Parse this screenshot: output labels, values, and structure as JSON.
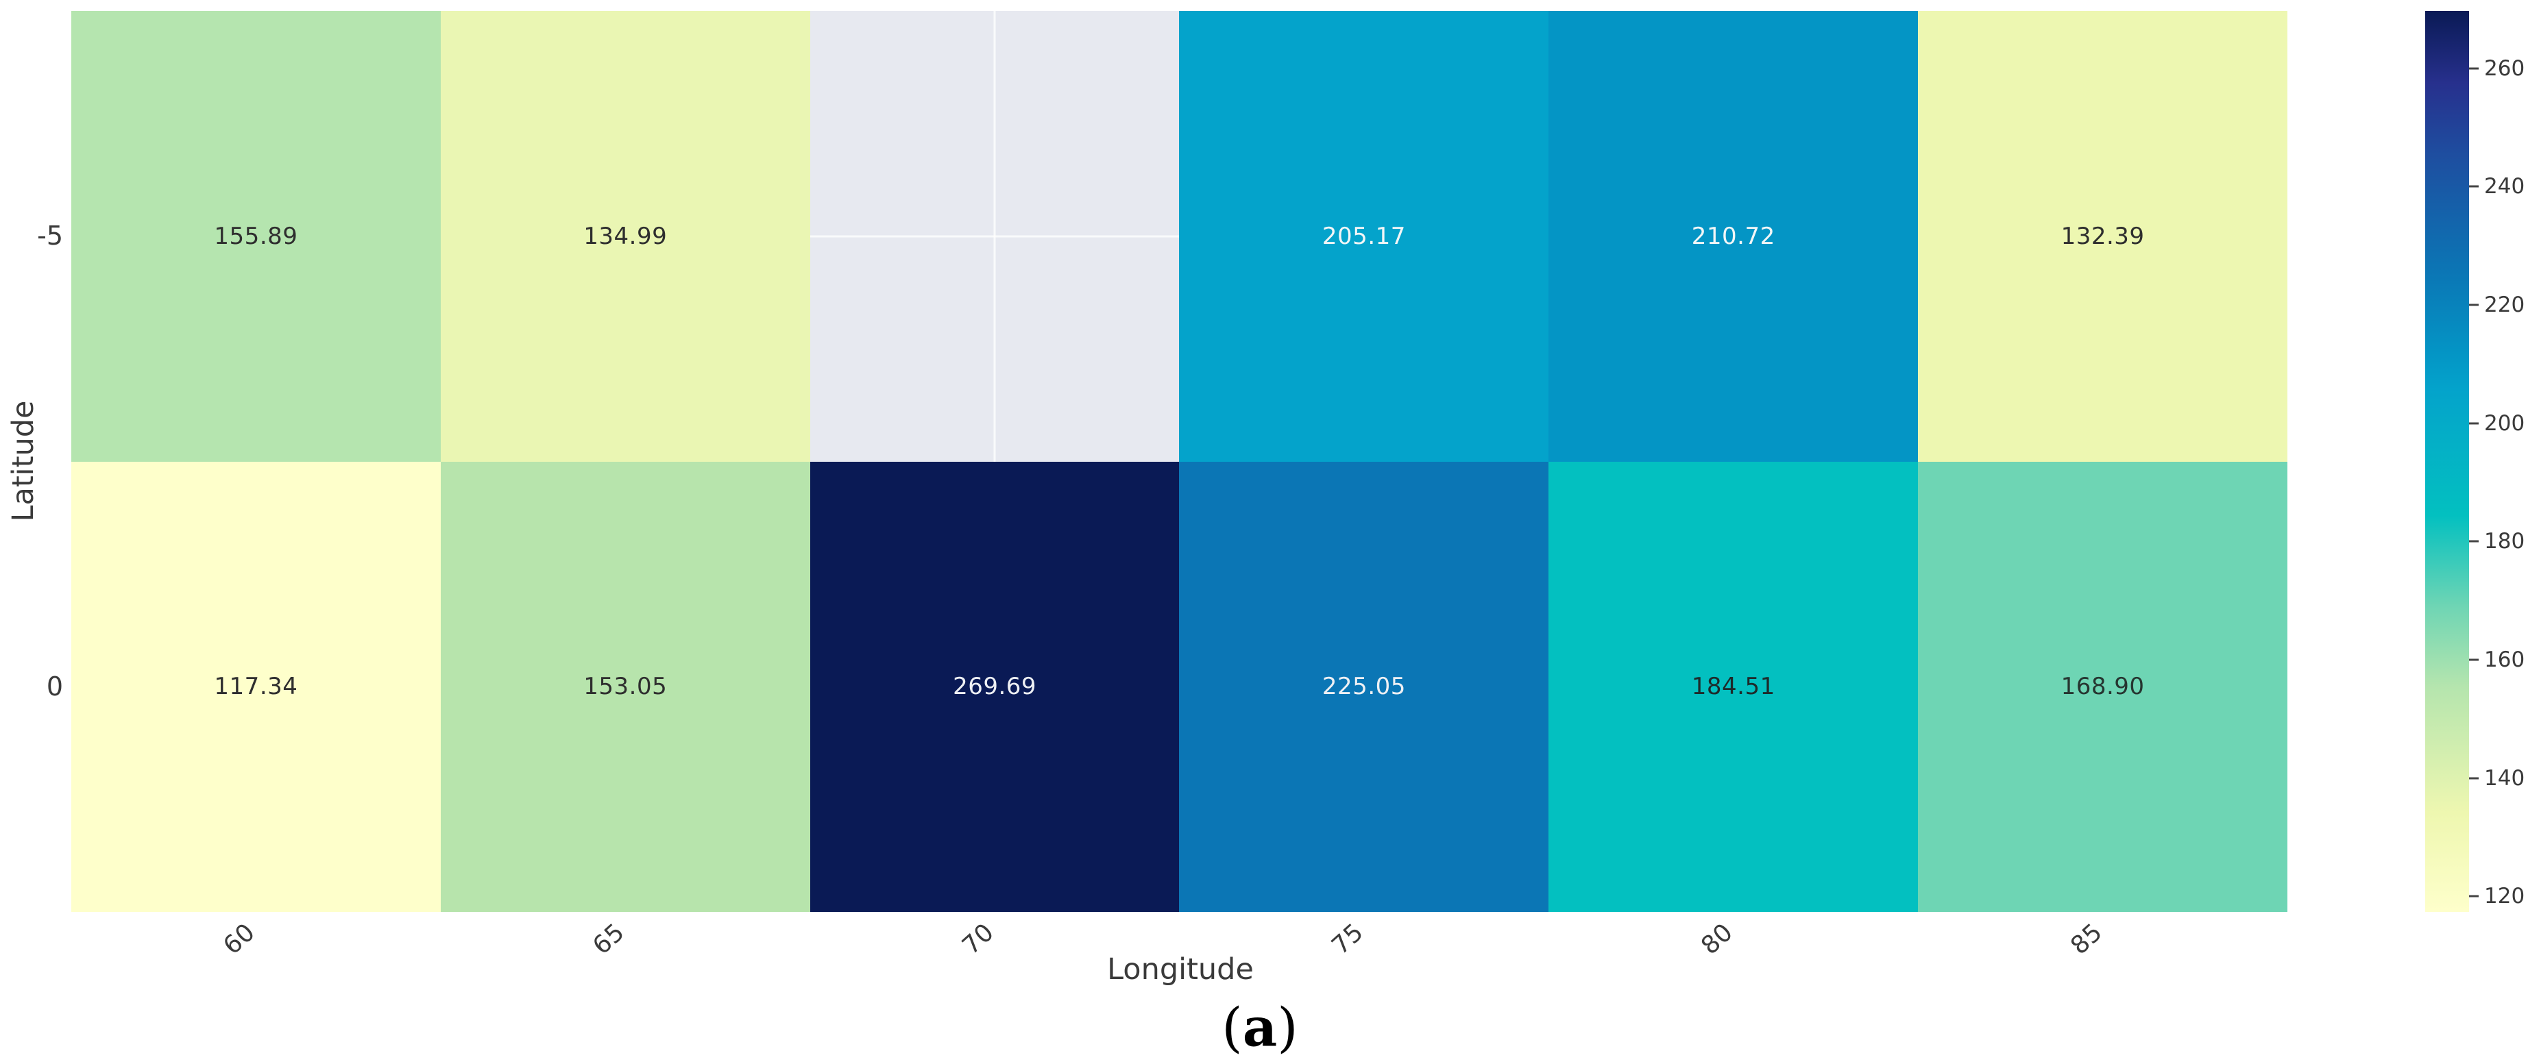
{
  "figure": {
    "caption": {
      "open": "(",
      "letter": "a",
      "close": ")"
    }
  },
  "chart_data": {
    "type": "heatmap",
    "title": "",
    "xlabel": "Longitude",
    "ylabel": "Latitude",
    "x_categories": [
      "60",
      "65",
      "70",
      "75",
      "80",
      "85"
    ],
    "y_categories": [
      "-5",
      "0"
    ],
    "values": [
      [
        155.89,
        134.99,
        null,
        205.17,
        210.72,
        132.39
      ],
      [
        117.34,
        153.05,
        269.69,
        225.05,
        184.51,
        168.9
      ]
    ],
    "cell_labels": [
      [
        "155.89",
        "134.99",
        "",
        "205.17",
        "210.72",
        "132.39"
      ],
      [
        "117.34",
        "153.05",
        "269.69",
        "225.05",
        "184.51",
        "168.90"
      ]
    ],
    "cell_colors": [
      [
        "#b5e5af",
        "#eaf6b3",
        "#e7e9f0",
        "#04a3cb",
        "#0495c5",
        "#edf7b1"
      ],
      [
        "#feffcb",
        "#b7e4ac",
        "#0a1a55",
        "#0b76b5",
        "#03c0c0",
        "#6ed5b4"
      ]
    ],
    "text_colors": [
      [
        "#2e2e2e",
        "#2e2e2e",
        "#2e2e2e",
        "#f2f6f7",
        "#f2f6f7",
        "#2e2e2e"
      ],
      [
        "#2e2e2e",
        "#2e2e2e",
        "#eef0f4",
        "#eef0f4",
        "#1e2a2a",
        "#263530"
      ]
    ],
    "missing_cell": {
      "row": "-5",
      "col": "70",
      "color": "#e7e9f0"
    },
    "colormap": "YlGnBu",
    "vmin": 117.34,
    "vmax": 269.69,
    "grid": false,
    "legend_position": "right-colorbar",
    "colorbar_ticks": [
      "260",
      "240",
      "220",
      "200",
      "180",
      "160",
      "140",
      "120"
    ],
    "colorbar_gradient": [
      {
        "pos": 0.0,
        "color": "#feffcb"
      },
      {
        "pos": 0.11,
        "color": "#eef7b0"
      },
      {
        "pos": 0.25,
        "color": "#b5e5ae"
      },
      {
        "pos": 0.34,
        "color": "#6ed5b4"
      },
      {
        "pos": 0.44,
        "color": "#03c0c0"
      },
      {
        "pos": 0.58,
        "color": "#04a3cb"
      },
      {
        "pos": 0.62,
        "color": "#0495c5"
      },
      {
        "pos": 0.71,
        "color": "#0b76b5"
      },
      {
        "pos": 0.84,
        "color": "#1e4ea0"
      },
      {
        "pos": 0.92,
        "color": "#27308d"
      },
      {
        "pos": 1.0,
        "color": "#0a1a55"
      }
    ]
  }
}
